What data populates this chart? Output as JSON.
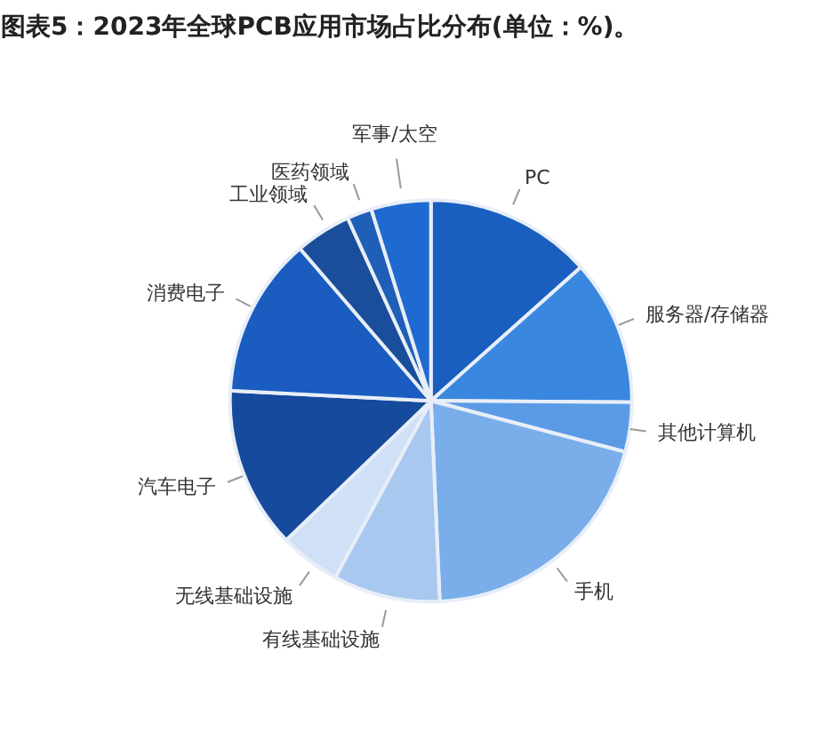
{
  "chart_data": {
    "type": "pie",
    "title": "图表5：2023年全球PCB应用市场占比分布(单位：%)。",
    "categories": [
      "PC",
      "服务器/存储器",
      "其他计算机",
      "手机",
      "有线基础设施",
      "无线基础设施",
      "汽车电子",
      "消费电子",
      "工业领域",
      "医药领域",
      "军事/太空"
    ],
    "values": [
      13.4,
      11.7,
      4,
      20.2,
      8.6,
      4.9,
      13,
      12.9,
      4.5,
      2,
      4.8
    ],
    "colors": [
      "#1a5fbf",
      "#3a87e0",
      "#5b9be6",
      "#7aaeea",
      "#a9c8f0",
      "#cfe0f7",
      "#164a9c",
      "#1a5cc0",
      "#1a4e9a",
      "#1f5fb8",
      "#1f6ad0"
    ]
  }
}
